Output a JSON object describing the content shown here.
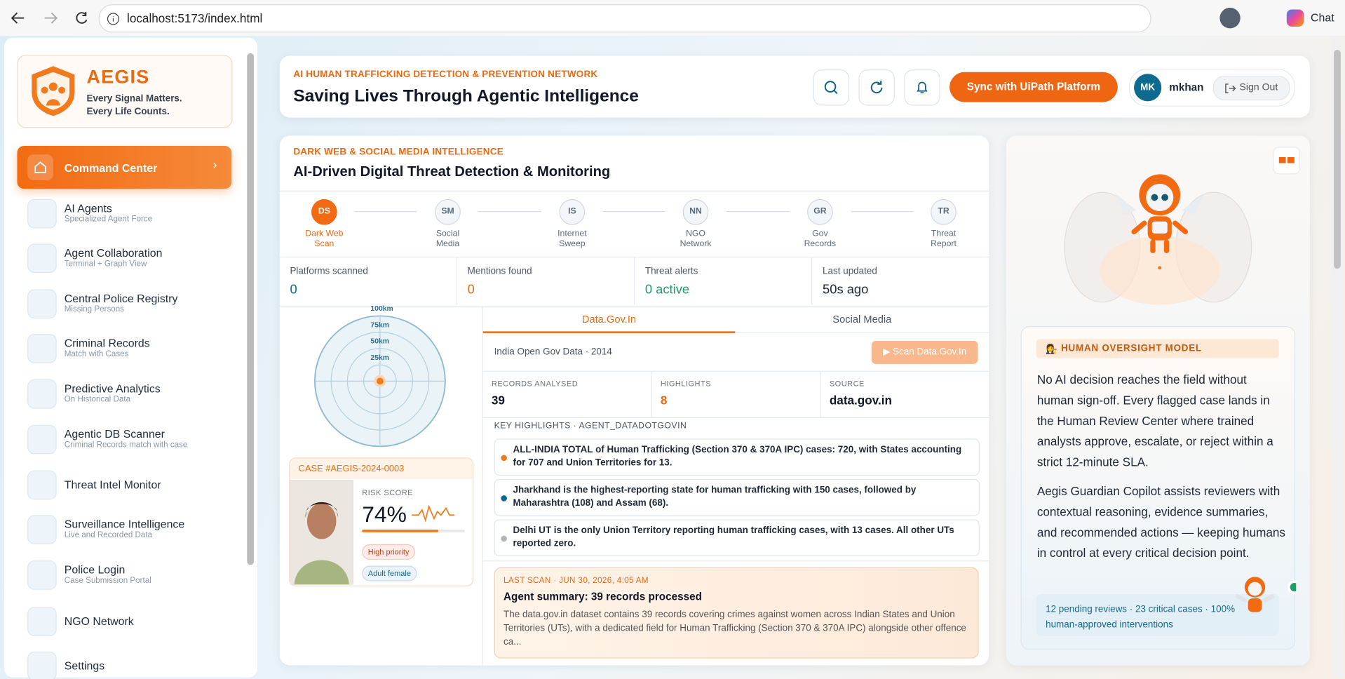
{
  "browser": {
    "url": "localhost:5173/index.html",
    "chat": "Chat"
  },
  "sidebar": {
    "brand": {
      "name": "AEGIS",
      "tagline_1": "Every Signal Matters.",
      "tagline_2": "Every Life Counts."
    },
    "active": "Command Center",
    "nav": [
      {
        "label": "AI Agents",
        "sub": "Specialized Agent Force"
      },
      {
        "label": "Agent Collaboration",
        "sub": "Terminal + Graph View"
      },
      {
        "label": "Central Police Registry",
        "sub": "Missing Persons"
      },
      {
        "label": "Criminal Records",
        "sub": "Match with Cases"
      },
      {
        "label": "Predictive Analytics",
        "sub": "On Historical Data"
      },
      {
        "label": "Agentic DB Scanner",
        "sub": "Criminal Records match with case"
      },
      {
        "label": "Threat Intel Monitor"
      },
      {
        "label": "Surveillance Intelligence",
        "sub": "Live and Recorded Data"
      },
      {
        "label": "Police Login",
        "sub": "Case Submission Portal"
      },
      {
        "label": "NGO Network"
      },
      {
        "label": "Settings"
      }
    ]
  },
  "header": {
    "kicker": "AI HUMAN TRAFFICKING DETECTION & PREVENTION NETWORK",
    "title": "Saving Lives Through Agentic Intelligence",
    "sync_button": "Sync with UiPath Platform",
    "user_initials": "MK",
    "user": "mkhan",
    "sign_out": "Sign Out"
  },
  "panel": {
    "kicker": "DARK WEB & SOCIAL MEDIA INTELLIGENCE",
    "title": "AI-Driven Digital Threat Detection & Monitoring",
    "steps": [
      {
        "abbr": "DS",
        "label": "Dark Web Scan"
      },
      {
        "abbr": "SM",
        "label": "Social Media"
      },
      {
        "abbr": "IS",
        "label": "Internet Sweep"
      },
      {
        "abbr": "NN",
        "label": "NGO Network"
      },
      {
        "abbr": "GR",
        "label": "Gov Records"
      },
      {
        "abbr": "TR",
        "label": "Threat Report"
      }
    ],
    "stats": [
      {
        "label": "Platforms scanned",
        "value": "0"
      },
      {
        "label": "Mentions found",
        "value": "0"
      },
      {
        "label": "Threat alerts",
        "value": "0 active"
      },
      {
        "label": "Last updated",
        "value": "50s ago"
      }
    ],
    "radar": [
      "100km",
      "75km",
      "50km",
      "25km"
    ],
    "case": {
      "id": "CASE #AEGIS-2024-0003",
      "risk_title": "RISK SCORE",
      "risk_score": {
        "value": 74,
        "label": "74%"
      },
      "tags": [
        "High priority",
        "Adult female"
      ]
    },
    "tabs": [
      "Data.Gov.In",
      "Social Media"
    ],
    "source_line": "India Open Gov Data · 2014",
    "scan_button": "▶ Scan Data.Gov.In",
    "metrics": [
      {
        "label": "RECORDS ANALYSED",
        "value": "39"
      },
      {
        "label": "HIGHLIGHTS",
        "value": "8"
      },
      {
        "label": "SOURCE",
        "value": "data.gov.in"
      }
    ],
    "highlights_title": "KEY HIGHLIGHTS · AGENT_DATADOTGOVIN",
    "highlights": [
      "ALL-INDIA TOTAL of Human Trafficking (Section 370 & 370A IPC) cases: 720, with States accounting for 707 and Union Territories for 13.",
      "Jharkhand is the highest-reporting state for human trafficking with 150 cases, followed by Maharashtra (108) and Assam (68).",
      "Delhi UT is the only Union Territory reporting human trafficking cases, with 13 cases. All other UTs reported zero."
    ],
    "last_scan": {
      "kicker": "LAST SCAN · JUN 30, 2026, 4:05 AM",
      "title": "Agent summary: 39 records processed",
      "body": "The data.gov.in dataset contains 39 records covering crimes against women across Indian States and Union Territories (UTs), with a dedicated field for Human Trafficking (Section 370 & 370A IPC) alongside other offence ca..."
    }
  },
  "oversight": {
    "title": "HUMAN OVERSIGHT MODEL",
    "paragraph_1": "No AI decision reaches the field without human sign-off. Every flagged case lands in the Human Review Center where trained analysts approve, escalate, or reject within a strict 12-minute SLA.",
    "paragraph_2": "Aegis Guardian Copilot assists reviewers with contextual reasoning, evidence summaries, and recommended actions — keeping humans in control at every critical decision point.",
    "footer": "12 pending reviews · 23 critical cases · 100% human-approved interventions"
  }
}
